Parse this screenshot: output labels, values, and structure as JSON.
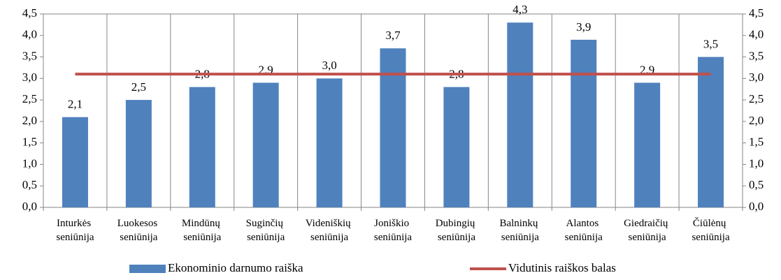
{
  "chart_data": {
    "type": "bar",
    "categories": [
      "Inturkės seniūnija",
      "Luokesos seniūnija",
      "Mindūnų seniūnija",
      "Suginčių seniūnija",
      "Videniškių seniūnija",
      "Joniškio seniūnija",
      "Dubingių seniūnija",
      "Balninkų seniūnija",
      "Alantos seniūnija",
      "Giedraičių seniūnija",
      "Čiūlėnų seniūnija"
    ],
    "series": [
      {
        "name": "Ekonominio darnumo raiška",
        "color": "#4f81bd",
        "type": "bar",
        "values": [
          2.1,
          2.5,
          2.8,
          2.9,
          3.0,
          3.7,
          2.8,
          4.3,
          3.9,
          2.9,
          3.5
        ],
        "value_labels": [
          "2,1",
          "2,5",
          "2,8",
          "2,9",
          "3,0",
          "3,7",
          "2,8",
          "4,3",
          "3,9",
          "2,9",
          "3,5"
        ]
      },
      {
        "name": "Vidutinis raiškos balas",
        "color": "#c0504d",
        "type": "line",
        "values": [
          3.1,
          3.1,
          3.1,
          3.1,
          3.1,
          3.1,
          3.1,
          3.1,
          3.1,
          3.1,
          3.1
        ]
      }
    ],
    "ylim": [
      0,
      4.5
    ],
    "yticks": [
      {
        "value": 0,
        "label": "0,0"
      },
      {
        "value": 0.5,
        "label": "0,5"
      },
      {
        "value": 1,
        "label": "1,0"
      },
      {
        "value": 1.5,
        "label": "1,5"
      },
      {
        "value": 2,
        "label": "2,0"
      },
      {
        "value": 2.5,
        "label": "2,5"
      },
      {
        "value": 3,
        "label": "3,0"
      },
      {
        "value": 3.5,
        "label": "3,5"
      },
      {
        "value": 4,
        "label": "4,0"
      },
      {
        "value": 4.5,
        "label": "4,5"
      }
    ],
    "y2lim": [
      0,
      4.5
    ],
    "y2ticks": [
      {
        "value": 0,
        "label": "0,0"
      },
      {
        "value": 0.5,
        "label": "0,5"
      },
      {
        "value": 1,
        "label": "1,0"
      },
      {
        "value": 1.5,
        "label": "1,5"
      },
      {
        "value": 2,
        "label": "2,0"
      },
      {
        "value": 2.5,
        "label": "2,5"
      },
      {
        "value": 3,
        "label": "3,0"
      },
      {
        "value": 3.5,
        "label": "3,5"
      },
      {
        "value": 4,
        "label": "4,0"
      },
      {
        "value": 4.5,
        "label": "4,5"
      }
    ],
    "legend": "bottom"
  }
}
